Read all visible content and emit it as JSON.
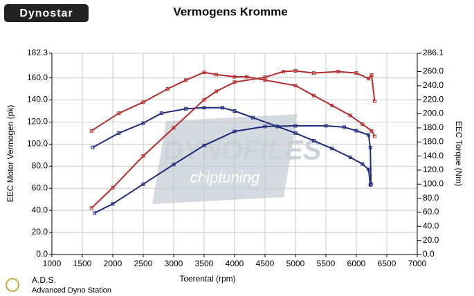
{
  "logo": "Dynostar",
  "footer": {
    "title": "A.D.S.",
    "subtitle": "Advanced Dyno Station"
  },
  "watermark": {
    "brand": "DYNOFILES",
    "sub": "chiptuning"
  },
  "chart_data": {
    "type": "line",
    "title": "Vermogens Kromme",
    "xlabel": "Toerental (rpm)",
    "ylabel": "EEC Motor Vermogen (pk)",
    "y2label": "EEC Torque (Nm)",
    "xlim": [
      1000,
      7000
    ],
    "xticks": [
      1000,
      1500,
      2000,
      2500,
      3000,
      3500,
      4000,
      4500,
      5000,
      5500,
      6000,
      6500,
      7000
    ],
    "ylim": [
      0,
      182.3
    ],
    "yticks": [
      {
        "value": 0,
        "label": "0.0"
      },
      {
        "value": 20,
        "label": "20.0"
      },
      {
        "value": 40,
        "label": "40.0"
      },
      {
        "value": 60,
        "label": "60.0"
      },
      {
        "value": 80,
        "label": "80.0"
      },
      {
        "value": 100,
        "label": "100.0"
      },
      {
        "value": 120,
        "label": "120.0"
      },
      {
        "value": 140,
        "label": "140.0"
      },
      {
        "value": 160,
        "label": "160.0"
      },
      182.3
    ],
    "y2lim": [
      0,
      286.1
    ],
    "y2ticks": [
      {
        "value": 0,
        "label": "0.0"
      },
      {
        "value": 20,
        "label": "20.0"
      },
      {
        "value": 40,
        "label": "40.0"
      },
      {
        "value": 60,
        "label": "60.0"
      },
      {
        "value": 80,
        "label": "80.0"
      },
      {
        "value": 100,
        "label": "100.0"
      },
      {
        "value": 120,
        "label": "120.0"
      },
      {
        "value": 140,
        "label": "140.0"
      },
      {
        "value": 160,
        "label": "160.0"
      },
      {
        "value": 180,
        "label": "180.0"
      },
      {
        "value": 200,
        "label": "200.0"
      },
      {
        "value": 220,
        "label": "220.0"
      },
      {
        "value": 240,
        "label": "240.0"
      },
      {
        "value": 260,
        "label": "260.0"
      },
      286.1
    ],
    "grid": true,
    "series": [
      {
        "color": "#b52a2a",
        "x": [
          1650,
          2100,
          2500,
          2900,
          3200,
          3500,
          3700,
          4000,
          4200,
          4500,
          5000,
          5300,
          5600,
          5900,
          6100,
          6250,
          6300
        ],
        "values": [
          112,
          128,
          138,
          150,
          158,
          165,
          163,
          161,
          161,
          158,
          153,
          144,
          135,
          126,
          118,
          112,
          107
        ]
      },
      {
        "color": "#1e2a7a",
        "x": [
          1670,
          2100,
          2500,
          2800,
          3200,
          3500,
          3800,
          4000,
          4300,
          4700,
          5000,
          5300,
          5600,
          5900,
          6100,
          6200,
          6230
        ],
        "values": [
          97,
          110,
          119,
          128,
          132,
          133,
          133,
          130,
          124,
          116,
          110,
          103,
          96,
          88,
          82,
          77,
          63
        ]
      },
      {
        "color": "#b52a2a",
        "axis": "y2",
        "x": [
          1650,
          2000,
          2500,
          3000,
          3500,
          3700,
          4000,
          4500,
          4800,
          5000,
          5300,
          5700,
          6000,
          6200,
          6250,
          6300
        ],
        "values": [
          66,
          95,
          140,
          180,
          220,
          232,
          245,
          252,
          260,
          261,
          258,
          260,
          258,
          250,
          255,
          218
        ]
      },
      {
        "color": "#1e2a7a",
        "axis": "y2",
        "x": [
          1700,
          2000,
          2500,
          3000,
          3500,
          4000,
          4500,
          5000,
          5500,
          5800,
          6000,
          6200,
          6230,
          6240
        ],
        "values": [
          59,
          72,
          100,
          128,
          155,
          175,
          182,
          183,
          183,
          181,
          176,
          170,
          152,
          100
        ]
      }
    ]
  }
}
